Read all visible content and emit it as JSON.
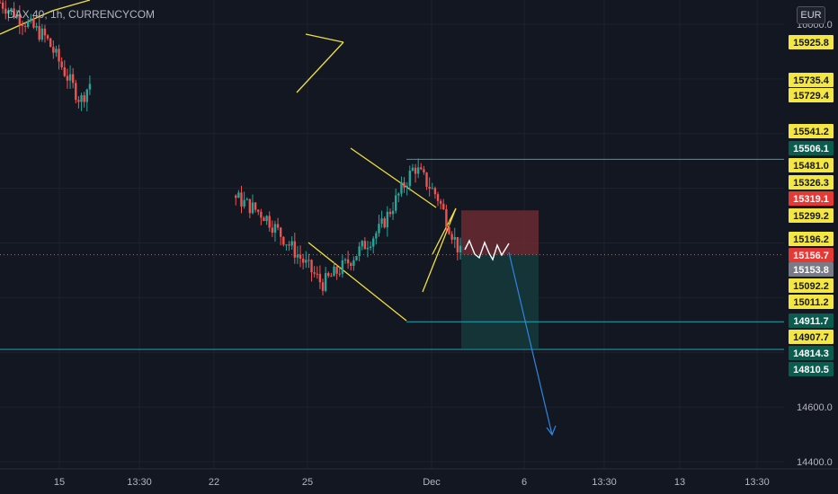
{
  "header": {
    "symbol_label": "DAX 40, 1h, CURRENCYCOM",
    "currency": "EUR"
  },
  "colors": {
    "background": "#131722",
    "grid": "#1e222d",
    "up": "#26a69a",
    "down": "#ef5350",
    "pattern_line": "#f0e040",
    "horizontal_line": "#1ea7b5",
    "projection_arrow": "#2e86de",
    "stop_zone": "#6b2a33",
    "target_zone": "#15373a",
    "yellow_label": "#f5e743",
    "teal_label": "#0a5d4e",
    "red_label": "#e53935",
    "gray_label": "#787b86"
  },
  "chart_data": {
    "type": "candlestick",
    "title": "DAX 40, 1h, CURRENCYCOM",
    "currency": "EUR",
    "ylim": [
      14380,
      16090
    ],
    "y_ticks": [
      14400.0,
      14600.0,
      16000.0
    ],
    "y_tick_labels": [
      "14400.0",
      "14600.0",
      "16000.0"
    ],
    "x_tick_labels": [
      "15",
      "13:30",
      "22",
      "25",
      "Dec",
      "6",
      "13:30",
      "13",
      "13:30"
    ],
    "price_labels": [
      {
        "text": "15925.8",
        "value": 15925.8,
        "style": "yellow"
      },
      {
        "text": "15735.4",
        "value": 15735.4,
        "style": "yellow"
      },
      {
        "text": "15729.4",
        "value": 15729.4,
        "style": "yellow"
      },
      {
        "text": "15541.2",
        "value": 15541.2,
        "style": "yellow"
      },
      {
        "text": "15506.1",
        "value": 15506.1,
        "style": "teal"
      },
      {
        "text": "15481.0",
        "value": 15481.0,
        "style": "yellow"
      },
      {
        "text": "15326.3",
        "value": 15326.3,
        "style": "yellow"
      },
      {
        "text": "15319.1",
        "value": 15319.1,
        "style": "red"
      },
      {
        "text": "15299.2",
        "value": 15299.2,
        "style": "yellow"
      },
      {
        "text": "15196.2",
        "value": 15196.2,
        "style": "yellow"
      },
      {
        "text": "15156.7",
        "value": 15156.7,
        "style": "red"
      },
      {
        "text": "15153.8",
        "value": 15153.8,
        "style": "gray"
      },
      {
        "text": "15092.2",
        "value": 15092.2,
        "style": "yellow"
      },
      {
        "text": "15011.2",
        "value": 15011.2,
        "style": "yellow"
      },
      {
        "text": "14911.7",
        "value": 14911.7,
        "style": "teal"
      },
      {
        "text": "14907.7",
        "value": 14907.7,
        "style": "yellow"
      },
      {
        "text": "14814.3",
        "value": 14814.3,
        "style": "teal"
      },
      {
        "text": "14810.5",
        "value": 14810.5,
        "style": "teal"
      }
    ],
    "current_price": 15156.7,
    "horizontal_levels": [
      15506.1,
      14911.7,
      14810.5
    ],
    "position": {
      "side": "short",
      "entry": 15156.7,
      "stop": 15319.1,
      "target": 14814.3
    },
    "candle_summary": {
      "start": 16080,
      "path_points": [
        {
          "t": 0,
          "p": 16080
        },
        {
          "t": 0.08,
          "p": 15950
        },
        {
          "t": 0.14,
          "p": 15720
        },
        {
          "t": 0.18,
          "p": 15880
        },
        {
          "t": 0.22,
          "p": 15820
        },
        {
          "t": 0.27,
          "p": 15620
        },
        {
          "t": 0.32,
          "p": 15440
        },
        {
          "t": 0.38,
          "p": 15200
        },
        {
          "t": 0.4,
          "p": 15380
        },
        {
          "t": 0.46,
          "p": 15300
        },
        {
          "t": 0.52,
          "p": 15150
        },
        {
          "t": 0.56,
          "p": 15050
        },
        {
          "t": 0.6,
          "p": 15120
        },
        {
          "t": 0.66,
          "p": 15250
        },
        {
          "t": 0.72,
          "p": 15480
        },
        {
          "t": 0.76,
          "p": 15370
        },
        {
          "t": 0.8,
          "p": 15160
        }
      ]
    }
  }
}
